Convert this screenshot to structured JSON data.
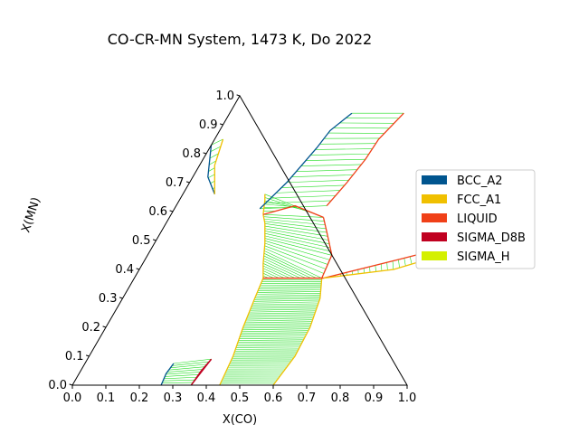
{
  "chart_data": {
    "type": "ternary-phase-diagram",
    "title": "CO-CR-MN System, 1473 K, Do 2022",
    "xlabel": "X(CO)",
    "ylabel": "X(MN)",
    "xlim": [
      0,
      1
    ],
    "ylim": [
      0,
      1
    ],
    "x_ticks": [
      "0.0",
      "0.1",
      "0.2",
      "0.3",
      "0.4",
      "0.5",
      "0.6",
      "0.7",
      "0.8",
      "0.9",
      "1.0"
    ],
    "y_ticks": [
      "0.0",
      "0.1",
      "0.2",
      "0.3",
      "0.4",
      "0.5",
      "0.6",
      "0.7",
      "0.8",
      "0.9",
      "1.0"
    ],
    "legend_position": "right",
    "legend": [
      {
        "name": "BCC_A2",
        "color": "#00558f"
      },
      {
        "name": "FCC_A1",
        "color": "#f0c000"
      },
      {
        "name": "LIQUID",
        "color": "#f04018"
      },
      {
        "name": "SIGMA_D8B",
        "color": "#c00020"
      },
      {
        "name": "SIGMA_H",
        "color": "#d4f000"
      }
    ],
    "tieline_color": "#22dd22",
    "regions": [
      {
        "name": "fcc-liquid-low",
        "boundary_a": [
          [
            0.44,
            0.0
          ],
          [
            0.43,
            0.1
          ],
          [
            0.41,
            0.2
          ],
          [
            0.395,
            0.3
          ],
          [
            0.385,
            0.37
          ]
        ],
        "boundary_b": [
          [
            0.6,
            0.0
          ],
          [
            0.615,
            0.1
          ],
          [
            0.61,
            0.2
          ],
          [
            0.59,
            0.3
          ],
          [
            0.56,
            0.37
          ]
        ],
        "boundary_a_color": "#f0c000",
        "boundary_b_color": "#f0c000",
        "tielines": 60
      },
      {
        "name": "fcc-liquid-mid",
        "boundary_a": [
          [
            0.385,
            0.37
          ],
          [
            0.36,
            0.42
          ],
          [
            0.33,
            0.49
          ],
          [
            0.295,
            0.56
          ],
          [
            0.275,
            0.59
          ]
        ],
        "boundary_b": [
          [
            0.385,
            0.37
          ],
          [
            0.56,
            0.37
          ],
          [
            0.55,
            0.45
          ],
          [
            0.495,
            0.53
          ],
          [
            0.46,
            0.58
          ]
        ],
        "boundary_a_color": "#f0c000",
        "boundary_b_color": "#f04018",
        "tielines": 26
      },
      {
        "name": "bcc-liquid-upper",
        "boundary_a": [
          [
            0.275,
            0.59
          ],
          [
            0.255,
            0.64
          ],
          [
            0.245,
            0.66
          ]
        ],
        "boundary_b": [
          [
            0.275,
            0.59
          ],
          [
            0.355,
            0.62
          ],
          [
            0.46,
            0.58
          ]
        ],
        "boundary_a_color": "#f0c000",
        "boundary_b_color": "#f04018",
        "tielines": 6
      },
      {
        "name": "bcc-liquid-top",
        "boundary_a": [
          [
            0.255,
            0.61
          ],
          [
            0.29,
            0.7
          ],
          [
            0.32,
            0.82
          ],
          [
            0.33,
            0.88
          ],
          [
            0.365,
            0.94
          ]
        ],
        "boundary_b": [
          [
            0.45,
            0.62
          ],
          [
            0.47,
            0.7
          ],
          [
            0.485,
            0.78
          ],
          [
            0.49,
            0.85
          ],
          [
            0.52,
            0.94
          ]
        ],
        "boundary_a_color": "#00558f",
        "boundary_b_color": "#f04018",
        "tielines": 18
      },
      {
        "name": "bcc-mn-side",
        "boundary_a": [
          [
            0.0,
            0.83
          ],
          [
            0.045,
            0.72
          ],
          [
            0.095,
            0.66
          ]
        ],
        "boundary_b": [
          [
            0.025,
            0.85
          ],
          [
            0.045,
            0.76
          ],
          [
            0.095,
            0.66
          ]
        ],
        "boundary_a_color": "#00558f",
        "boundary_b_color": "#f0c000",
        "tielines": 8
      },
      {
        "name": "sigma-co-side",
        "boundary_a": [
          [
            0.565,
            0.37
          ],
          [
            0.76,
            0.435
          ],
          [
            0.86,
            0.47
          ]
        ],
        "boundary_b": [
          [
            0.565,
            0.37
          ],
          [
            0.76,
            0.4
          ],
          [
            0.88,
            0.45
          ]
        ],
        "boundary_a_color": "#f04018",
        "boundary_b_color": "#f0c000",
        "tielines": 20
      },
      {
        "name": "bcc-cr-corner",
        "boundary_a": [
          [
            0.265,
            0.0
          ],
          [
            0.26,
            0.04
          ],
          [
            0.265,
            0.075
          ]
        ],
        "boundary_b": [
          [
            0.355,
            0.0
          ],
          [
            0.36,
            0.05
          ],
          [
            0.37,
            0.09
          ]
        ],
        "boundary_a_color": "#00558f",
        "boundary_b_color": "#c00020",
        "tielines": 10
      }
    ],
    "phase_lines": [
      {
        "color": "#f04018",
        "points": [
          [
            0.385,
            0.37
          ],
          [
            0.56,
            0.37
          ],
          [
            0.565,
            0.37
          ]
        ]
      },
      {
        "color": "#c00020",
        "points": [
          [
            0.355,
            0.0
          ],
          [
            0.37,
            0.09
          ]
        ]
      }
    ]
  }
}
